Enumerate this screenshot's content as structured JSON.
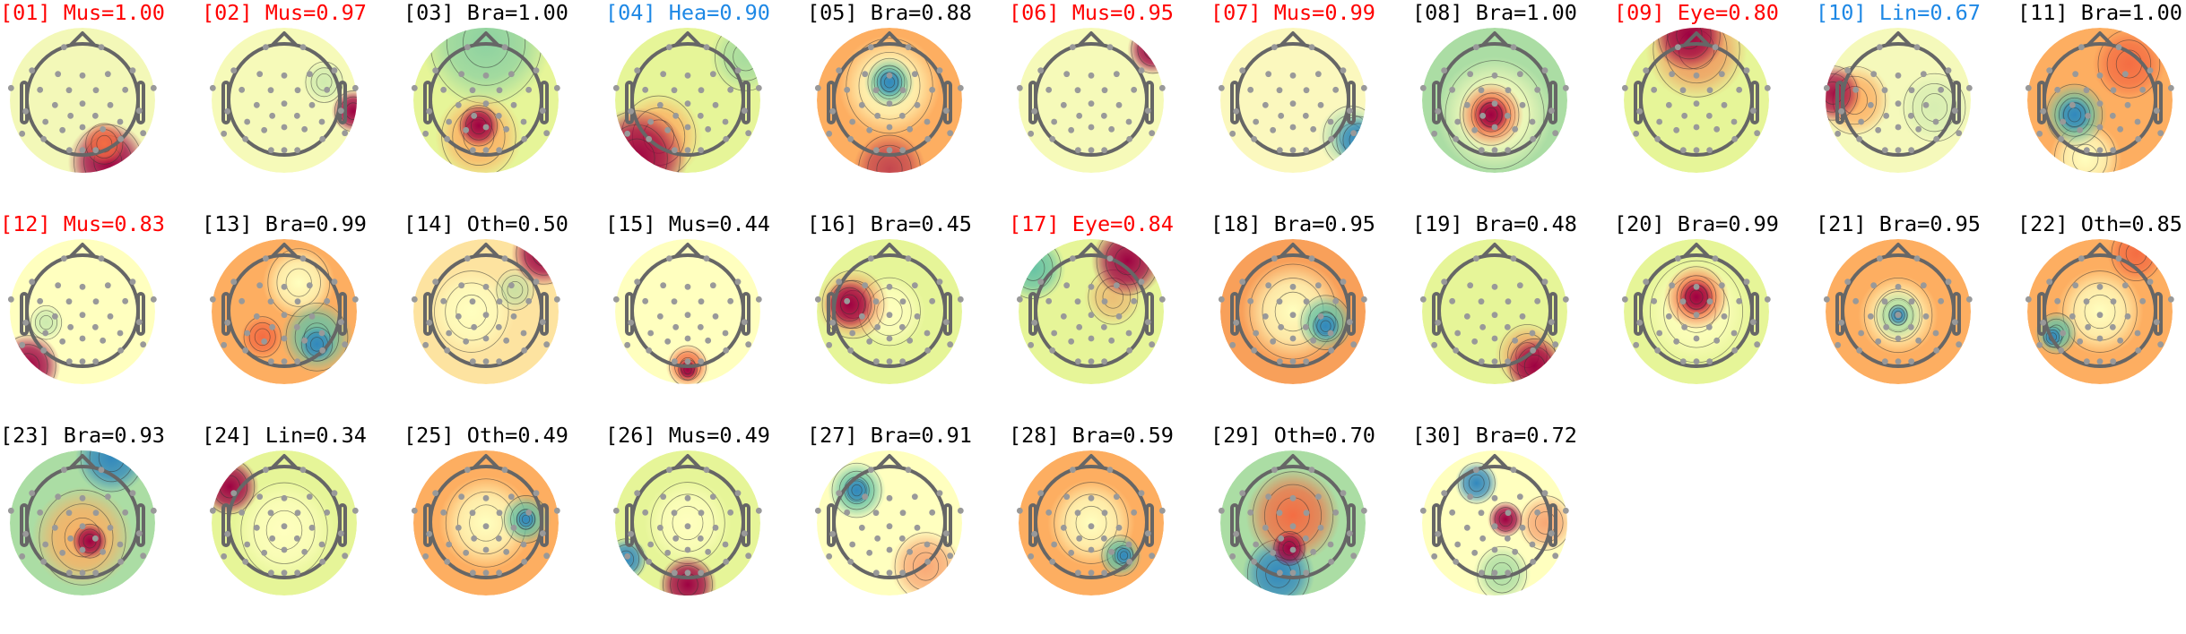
{
  "colors": {
    "Muscle/Eye": "#ff0000",
    "Heart/Line": "#1e88e5",
    "Other": "#000000"
  },
  "colormap": {
    "negative": "#3288bd",
    "neutral": "#ffffbf",
    "positive": "#9e0142"
  },
  "components": [
    {
      "title": "[01] Mus=1.00",
      "color": "#ff0000"
    },
    {
      "title": "[02] Mus=0.97",
      "color": "#ff0000"
    },
    {
      "title": "[03] Bra=1.00",
      "color": "#000000"
    },
    {
      "title": "[04] Hea=0.90",
      "color": "#1e88e5"
    },
    {
      "title": "[05] Bra=0.88",
      "color": "#000000"
    },
    {
      "title": "[06] Mus=0.95",
      "color": "#ff0000"
    },
    {
      "title": "[07] Mus=0.99",
      "color": "#ff0000"
    },
    {
      "title": "[08] Bra=1.00",
      "color": "#000000"
    },
    {
      "title": "[09] Eye=0.80",
      "color": "#ff0000"
    },
    {
      "title": "[10] Lin=0.67",
      "color": "#1e88e5"
    },
    {
      "title": "[11] Bra=1.00",
      "color": "#000000"
    },
    {
      "title": "[12] Mus=0.83",
      "color": "#ff0000"
    },
    {
      "title": "[13] Bra=0.99",
      "color": "#000000"
    },
    {
      "title": "[14] Oth=0.50",
      "color": "#000000"
    },
    {
      "title": "[15] Mus=0.44",
      "color": "#000000"
    },
    {
      "title": "[16] Bra=0.45",
      "color": "#000000"
    },
    {
      "title": "[17] Eye=0.84",
      "color": "#ff0000"
    },
    {
      "title": "[18] Bra=0.95",
      "color": "#000000"
    },
    {
      "title": "[19] Bra=0.48",
      "color": "#000000"
    },
    {
      "title": "[20] Bra=0.99",
      "color": "#000000"
    },
    {
      "title": "[21] Bra=0.95",
      "color": "#000000"
    },
    {
      "title": "[22] Oth=0.85",
      "color": "#000000"
    },
    {
      "title": "[23] Bra=0.93",
      "color": "#000000"
    },
    {
      "title": "[24] Lin=0.34",
      "color": "#000000"
    },
    {
      "title": "[25] Oth=0.49",
      "color": "#000000"
    },
    {
      "title": "[26] Mus=0.49",
      "color": "#000000"
    },
    {
      "title": "[27] Bra=0.91",
      "color": "#000000"
    },
    {
      "title": "[28] Bra=0.59",
      "color": "#000000"
    },
    {
      "title": "[29] Oth=0.70",
      "color": "#000000"
    },
    {
      "title": "[30] Bra=0.72",
      "color": "#000000"
    }
  ]
}
